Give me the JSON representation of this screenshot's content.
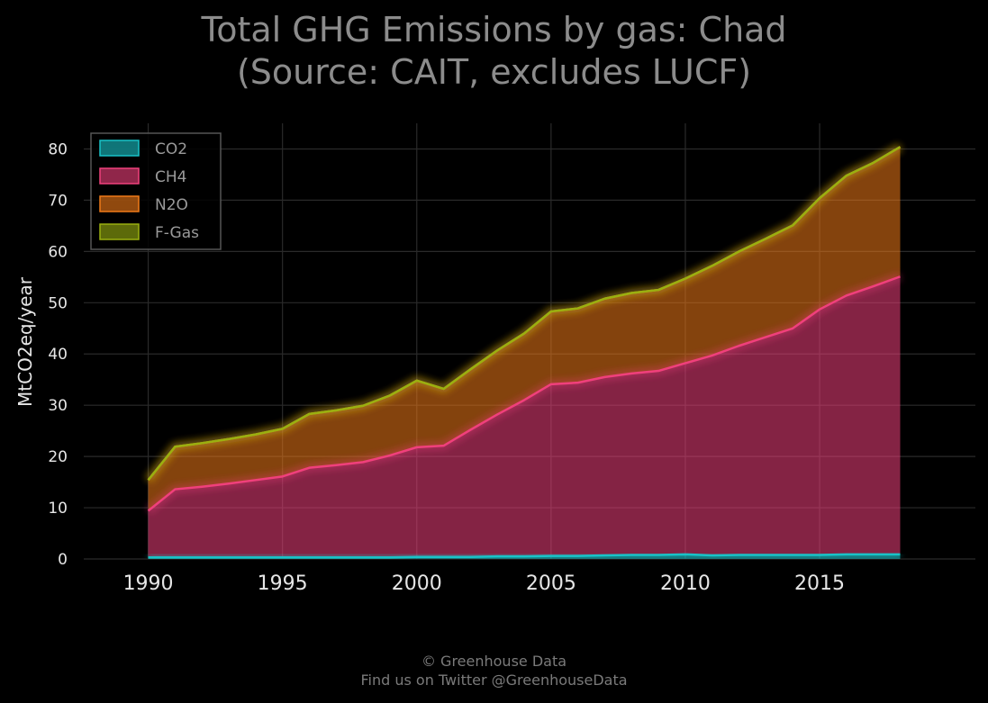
{
  "title_line1": "Total GHG Emissions by gas: Chad",
  "title_line2": "(Source: CAIT, excludes LUCF)",
  "footer_line1": "© Greenhouse Data",
  "footer_line2": "Find us on Twitter @GreenhouseData",
  "chart_data": {
    "type": "area",
    "stacked": true,
    "ylabel": "MtCO2eq/year",
    "xlim": [
      1987.6,
      2020.8
    ],
    "ylim": [
      0,
      85
    ],
    "yticks": [
      0,
      10,
      20,
      30,
      40,
      50,
      60,
      70,
      80
    ],
    "xticks": [
      1990,
      1995,
      2000,
      2005,
      2010,
      2015
    ],
    "grid": true,
    "legend_position": "top-left",
    "x": [
      1990,
      1991,
      1992,
      1993,
      1994,
      1995,
      1996,
      1997,
      1998,
      1999,
      2000,
      2001,
      2002,
      2003,
      2004,
      2005,
      2006,
      2007,
      2008,
      2009,
      2010,
      2011,
      2012,
      2013,
      2014,
      2015,
      2016,
      2017,
      2018
    ],
    "series": [
      {
        "name": "CO2",
        "color": "#19c3c8",
        "values": [
          0.3,
          0.3,
          0.3,
          0.3,
          0.3,
          0.3,
          0.3,
          0.3,
          0.3,
          0.3,
          0.4,
          0.4,
          0.4,
          0.5,
          0.5,
          0.6,
          0.6,
          0.7,
          0.8,
          0.8,
          0.9,
          0.7,
          0.8,
          0.8,
          0.8,
          0.8,
          0.9,
          0.9,
          0.9
        ]
      },
      {
        "name": "CH4",
        "color": "#f0407c",
        "values": [
          9.1,
          13.3,
          13.8,
          14.4,
          15.1,
          15.8,
          17.5,
          18.0,
          18.6,
          19.9,
          21.4,
          21.7,
          24.8,
          27.7,
          30.5,
          33.5,
          33.8,
          34.8,
          35.4,
          35.9,
          37.3,
          39.0,
          40.8,
          42.5,
          44.2,
          47.9,
          50.5,
          52.3,
          54.2
        ]
      },
      {
        "name": "N2O",
        "color": "#f07a18",
        "values": [
          6.0,
          8.3,
          8.5,
          8.7,
          8.9,
          9.3,
          10.5,
          10.7,
          11.0,
          11.7,
          13.0,
          11.1,
          11.8,
          12.5,
          13.0,
          14.2,
          14.5,
          15.3,
          15.7,
          15.8,
          16.5,
          17.5,
          18.4,
          19.2,
          20.1,
          21.7,
          23.4,
          24.1,
          25.3
        ]
      },
      {
        "name": "F-Gas",
        "color": "#9ab010",
        "values": [
          0,
          0,
          0,
          0,
          0,
          0,
          0,
          0,
          0,
          0,
          0,
          0,
          0,
          0,
          0,
          0,
          0,
          0,
          0,
          0,
          0,
          0,
          0,
          0,
          0,
          0,
          0,
          0,
          0
        ]
      }
    ]
  }
}
